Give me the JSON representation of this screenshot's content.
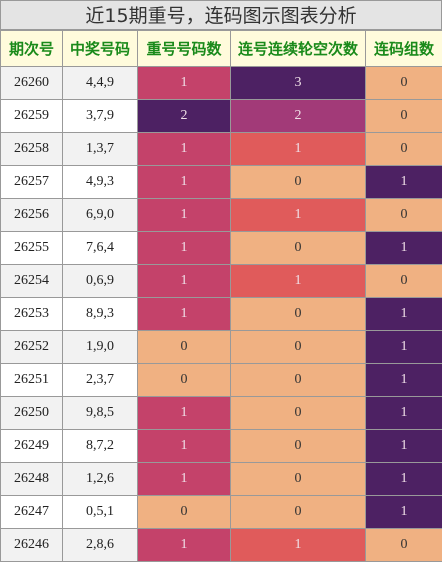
{
  "title": "近15期重号，连码图示图表分析",
  "table": {
    "headers": [
      "期次号",
      "中奖号码",
      "重号号码数",
      "连号连续轮空次数",
      "连码组数"
    ],
    "rows": [
      [
        "26260",
        "4,4,9",
        1,
        3,
        0
      ],
      [
        "26259",
        "3,7,9",
        2,
        2,
        0
      ],
      [
        "26258",
        "1,3,7",
        1,
        1,
        0
      ],
      [
        "26257",
        "4,9,3",
        1,
        0,
        1
      ],
      [
        "26256",
        "6,9,0",
        1,
        1,
        0
      ],
      [
        "26255",
        "7,6,4",
        1,
        0,
        1
      ],
      [
        "26254",
        "0,6,9",
        1,
        1,
        0
      ],
      [
        "26253",
        "8,9,3",
        1,
        0,
        1
      ],
      [
        "26252",
        "1,9,0",
        0,
        0,
        1
      ],
      [
        "26251",
        "2,3,7",
        0,
        0,
        1
      ],
      [
        "26250",
        "9,8,5",
        1,
        0,
        1
      ],
      [
        "26249",
        "8,7,2",
        1,
        0,
        1
      ],
      [
        "26248",
        "1,2,6",
        1,
        0,
        1
      ],
      [
        "26247",
        "0,5,1",
        0,
        0,
        1
      ],
      [
        "26246",
        "2,8,6",
        1,
        1,
        0
      ]
    ],
    "color_maps": [
      null,
      null,
      {
        "0": "#f0b182",
        "1": "#c4426a",
        "2": "#4d2163"
      },
      {
        "0": "#f0b182",
        "1": "#e05b5b",
        "2": "#a23a78",
        "3": "#4d2163"
      },
      {
        "0": "#f0b182",
        "1": "#4d2163"
      }
    ]
  }
}
